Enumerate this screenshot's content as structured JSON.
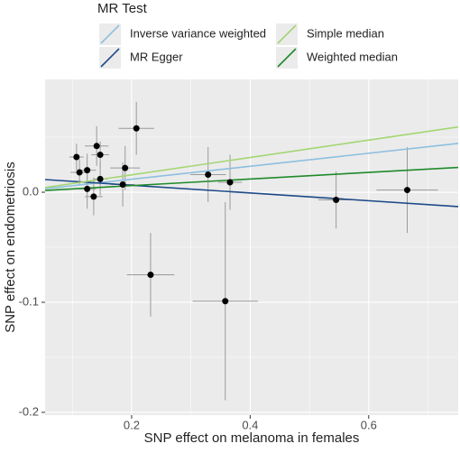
{
  "chart_data": {
    "type": "scatter",
    "x_label": "SNP effect on melanoma in females",
    "y_label": "SNP effect on endometriosis",
    "legend_title": "MR Test",
    "x": [
      0.107,
      0.112,
      0.125,
      0.125,
      0.141,
      0.136,
      0.147,
      0.147,
      0.189,
      0.185,
      0.208,
      0.232,
      0.329,
      0.366,
      0.358,
      0.545,
      0.665
    ],
    "y": [
      0.032,
      0.018,
      0.02,
      0.003,
      0.042,
      -0.004,
      0.012,
      0.034,
      0.022,
      0.007,
      0.058,
      -0.075,
      0.016,
      0.009,
      -0.099,
      -0.007,
      0.002
    ],
    "xerr": [
      0.012,
      0.015,
      0.015,
      0.015,
      0.02,
      0.015,
      0.012,
      0.015,
      0.025,
      0.02,
      0.03,
      0.04,
      0.03,
      0.02,
      0.055,
      0.03,
      0.052
    ],
    "yerr": [
      0.012,
      0.012,
      0.015,
      0.018,
      0.018,
      0.017,
      0.015,
      0.012,
      0.02,
      0.02,
      0.024,
      0.038,
      0.025,
      0.025,
      0.09,
      0.026,
      0.039
    ],
    "point_color": "#000000",
    "error_color": "#9a9a9a",
    "lines": [
      {
        "name": "Inverse variance weighted",
        "color": "#8dbfdf",
        "intercept": 0,
        "slope": 0.059
      },
      {
        "name": "MR Egger",
        "color": "#1d4a87",
        "intercept": 0.0134,
        "slope": -0.0352
      },
      {
        "name": "Simple median",
        "color": "#a3d672",
        "intercept": 0,
        "slope": 0.079
      },
      {
        "name": "Weighted median",
        "color": "#1f8a2a",
        "intercept": 0,
        "slope": 0.03
      }
    ],
    "xlim": [
      0.054,
      0.751
    ],
    "ylim": [
      -0.2025,
      0.1025
    ],
    "xticks": [
      0.2,
      0.4,
      0.6
    ],
    "yticks": [
      {
        "value": 0,
        "label": "0.0"
      },
      -0.1,
      -0.2
    ],
    "minor_xticks": [
      0.1,
      0.3,
      0.5,
      0.7
    ],
    "minor_yticks": [
      0.05,
      -0.05,
      -0.15
    ],
    "grid": true,
    "legend_position": "top"
  }
}
